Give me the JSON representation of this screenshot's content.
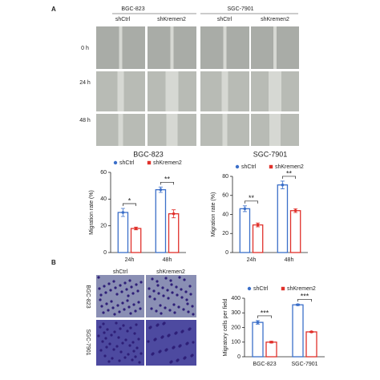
{
  "panel_a": {
    "label": "A",
    "groups": [
      "BGC-823",
      "SGC-7901"
    ],
    "conditions": [
      "shCtrl",
      "shKremen2",
      "shCtrl",
      "shKremen2"
    ],
    "times": [
      "0 h",
      "24 h",
      "48 h"
    ]
  },
  "panel_b": {
    "label": "B",
    "conditions": [
      "shCtrl",
      "shKremen2"
    ],
    "cell_lines": [
      "BGC-823",
      "SGC-7901"
    ]
  },
  "chart_data": [
    {
      "type": "bar",
      "title": "BGC-823",
      "y_label": "Migration rate (%)",
      "categories": [
        "24h",
        "48h"
      ],
      "series": [
        {
          "name": "shCtrl",
          "color": "#3b6fc9",
          "values": [
            30,
            47
          ],
          "errors": [
            3,
            2
          ]
        },
        {
          "name": "shKremen2",
          "color": "#e0312b",
          "values": [
            18,
            29
          ],
          "errors": [
            1,
            3
          ]
        }
      ],
      "ylim": [
        0,
        60
      ],
      "yticks": [
        0,
        20,
        40,
        60
      ],
      "annotations": [
        "*",
        "**"
      ]
    },
    {
      "type": "bar",
      "title": "SGC-7901",
      "y_label": "Migration rate (%)",
      "categories": [
        "24h",
        "48h"
      ],
      "series": [
        {
          "name": "shCtrl",
          "color": "#3b6fc9",
          "values": [
            46,
            71
          ],
          "errors": [
            3,
            4
          ]
        },
        {
          "name": "shKremen2",
          "color": "#e0312b",
          "values": [
            29,
            44
          ],
          "errors": [
            2,
            2
          ]
        }
      ],
      "ylim": [
        0,
        80
      ],
      "yticks": [
        0,
        20,
        40,
        60,
        80
      ],
      "annotations": [
        "**",
        "**"
      ]
    },
    {
      "type": "bar",
      "y_label": "Migratory cells per field",
      "categories": [
        "BGC-823",
        "SGC-7901"
      ],
      "series": [
        {
          "name": "shCtrl",
          "color": "#3b6fc9",
          "values": [
            235,
            355
          ],
          "errors": [
            12,
            5
          ]
        },
        {
          "name": "shKremen2",
          "color": "#e0312b",
          "values": [
            100,
            170
          ],
          "errors": [
            6,
            4
          ]
        }
      ],
      "ylim": [
        0,
        400
      ],
      "yticks": [
        0,
        100,
        200,
        300,
        400
      ],
      "annotations": [
        "***",
        "***"
      ]
    }
  ]
}
